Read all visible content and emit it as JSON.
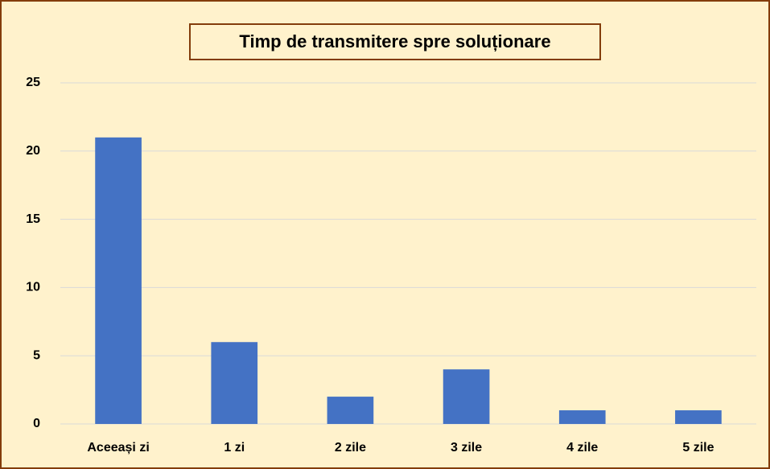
{
  "chart_data": {
    "type": "bar",
    "title": "Timp de transmitere spre soluționare",
    "categories": [
      "Aceeași zi",
      "1 zi",
      "2 zile",
      "3 zile",
      "4 zile",
      "5 zile"
    ],
    "values": [
      21,
      6,
      2,
      4,
      1,
      1
    ],
    "color": "#4472c4",
    "ylim": [
      0,
      25
    ],
    "yticks": [
      0,
      5,
      10,
      15,
      20,
      25
    ],
    "grid": true
  }
}
